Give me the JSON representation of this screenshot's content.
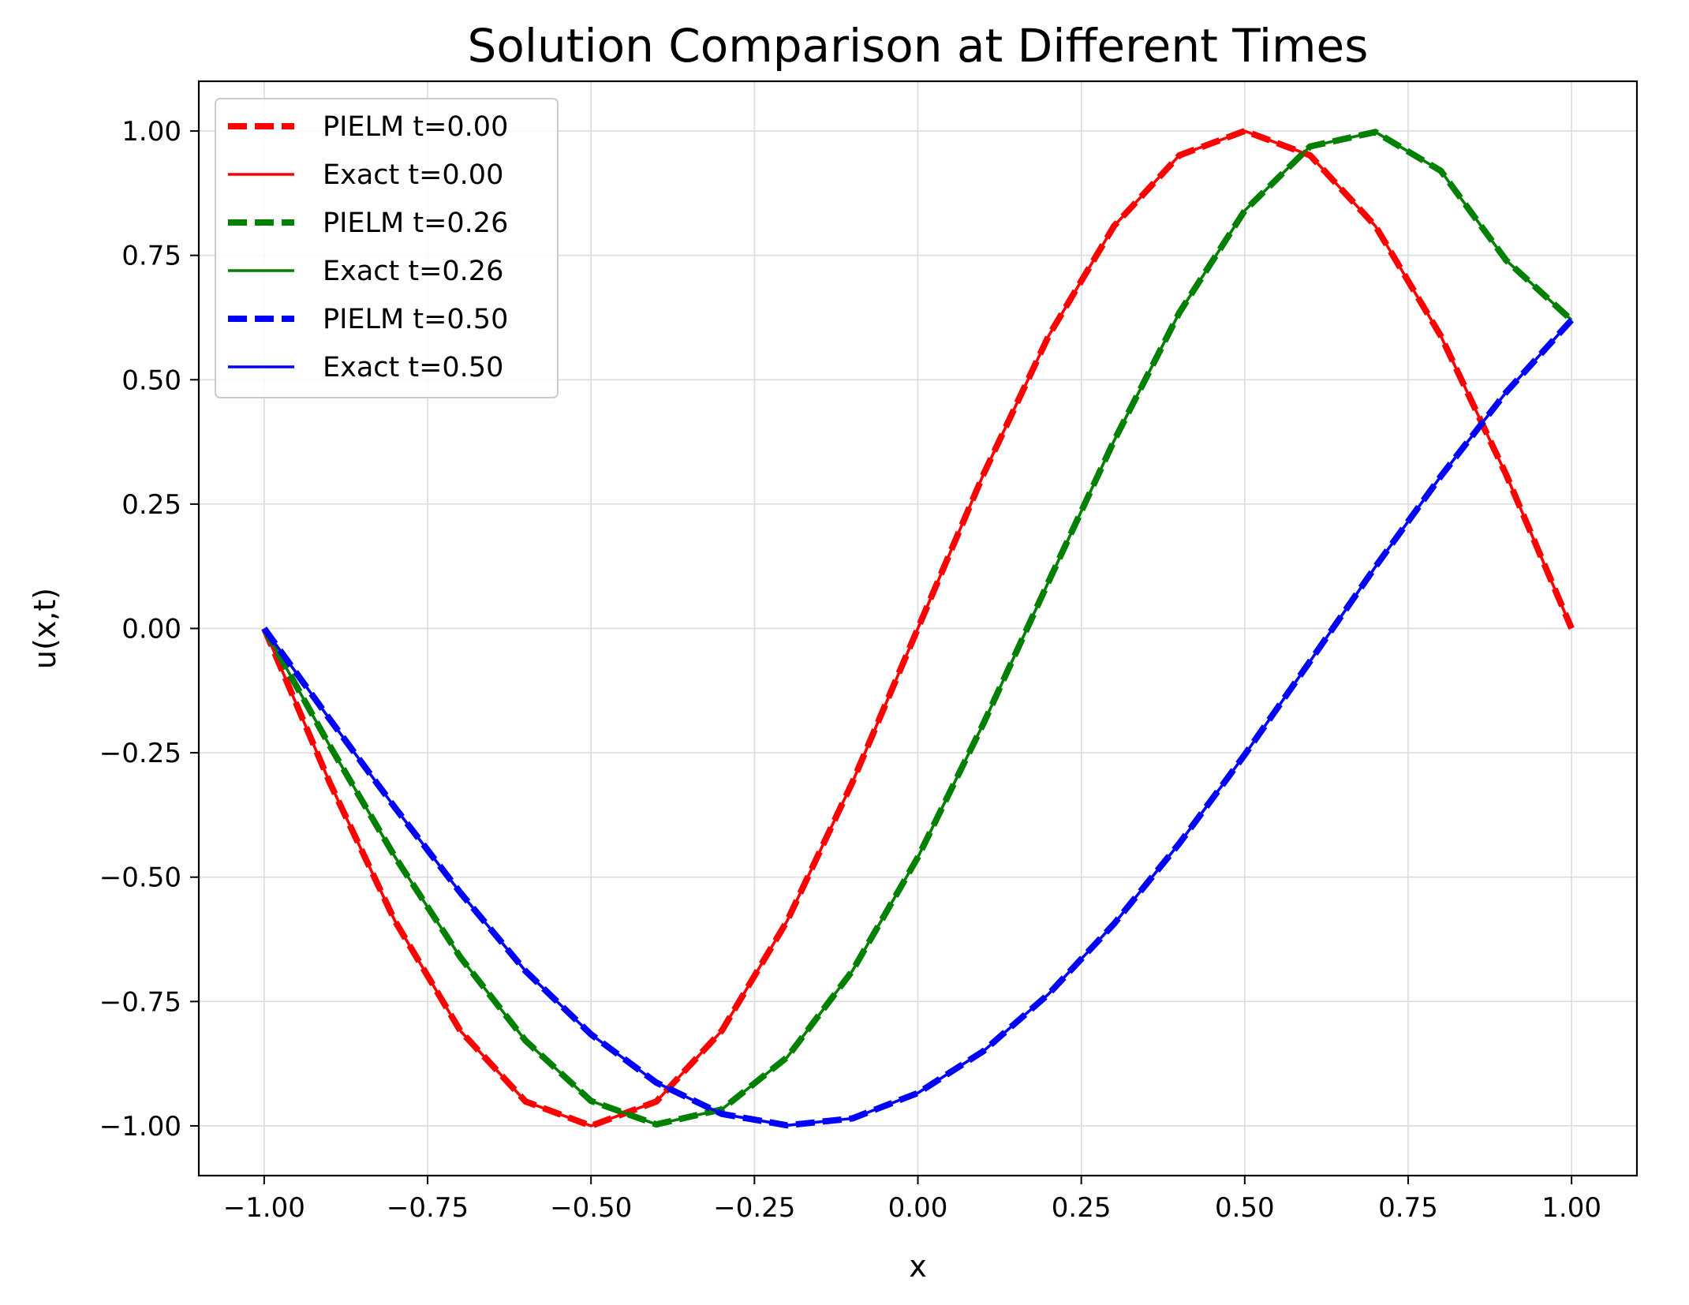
{
  "chart_data": {
    "type": "line",
    "title": "Solution Comparison at Different Times",
    "xlabel": "x",
    "ylabel": "u(x,t)",
    "xlim": [
      -1.1,
      1.1
    ],
    "ylim": [
      -1.1,
      1.1
    ],
    "grid": true,
    "legend_position": "top-left",
    "xticks": [
      -1.0,
      -0.75,
      -0.5,
      -0.25,
      0.0,
      0.25,
      0.5,
      0.75,
      1.0
    ],
    "xtick_labels": [
      "−1.00",
      "−0.75",
      "−0.50",
      "−0.25",
      "0.00",
      "0.25",
      "0.50",
      "0.75",
      "1.00"
    ],
    "yticks": [
      1.0,
      0.75,
      0.5,
      0.25,
      0.0,
      -0.25,
      -0.5,
      -0.75,
      -1.0
    ],
    "ytick_labels": [
      "1.00",
      "0.75",
      "0.50",
      "0.25",
      "0.00",
      "−0.25",
      "−0.50",
      "−0.75",
      "−1.00"
    ],
    "x": [
      -1.0,
      -0.9,
      -0.8,
      -0.7,
      -0.6,
      -0.5,
      -0.4,
      -0.3,
      -0.2,
      -0.1,
      0.0,
      0.1,
      0.2,
      0.3,
      0.4,
      0.5,
      0.6,
      0.7,
      0.8,
      0.9,
      1.0
    ],
    "series": [
      {
        "name": "PIELM t=0.00",
        "color": "#ff0000",
        "style": "dashed",
        "values": [
          0.0,
          -0.309,
          -0.588,
          -0.809,
          -0.951,
          -1.0,
          -0.951,
          -0.809,
          -0.588,
          -0.309,
          0.0,
          0.309,
          0.588,
          0.809,
          0.951,
          1.0,
          0.951,
          0.809,
          0.588,
          0.309,
          0.0
        ]
      },
      {
        "name": "Exact t=0.00",
        "color": "#ff0000",
        "style": "solid",
        "values": [
          0.0,
          -0.309,
          -0.588,
          -0.809,
          -0.951,
          -1.0,
          -0.951,
          -0.809,
          -0.588,
          -0.309,
          0.0,
          0.309,
          0.588,
          0.809,
          0.951,
          1.0,
          0.951,
          0.809,
          0.588,
          0.309,
          0.0
        ]
      },
      {
        "name": "PIELM t=0.26",
        "color": "#008000",
        "style": "dashed",
        "values": [
          0.0,
          -0.235,
          -0.459,
          -0.661,
          -0.829,
          -0.95,
          -0.997,
          -0.967,
          -0.862,
          -0.688,
          -0.46,
          -0.192,
          0.094,
          0.377,
          0.635,
          0.84,
          0.969,
          0.998,
          0.92,
          0.74,
          0.62
        ]
      },
      {
        "name": "Exact t=0.26",
        "color": "#008000",
        "style": "solid",
        "values": [
          0.0,
          -0.235,
          -0.459,
          -0.661,
          -0.829,
          -0.95,
          -0.997,
          -0.967,
          -0.862,
          -0.688,
          -0.46,
          -0.192,
          0.094,
          0.377,
          0.635,
          0.84,
          0.969,
          0.998,
          0.92,
          0.74,
          0.62
        ]
      },
      {
        "name": "PIELM t=0.50",
        "color": "#0000ff",
        "style": "dashed",
        "values": [
          0.0,
          -0.182,
          -0.36,
          -0.531,
          -0.689,
          -0.816,
          -0.913,
          -0.976,
          -0.999,
          -0.985,
          -0.934,
          -0.85,
          -0.735,
          -0.594,
          -0.432,
          -0.254,
          -0.066,
          0.124,
          0.306,
          0.475,
          0.62
        ]
      },
      {
        "name": "Exact t=0.50",
        "color": "#0000ff",
        "style": "solid",
        "values": [
          0.0,
          -0.182,
          -0.36,
          -0.531,
          -0.689,
          -0.816,
          -0.913,
          -0.976,
          -0.999,
          -0.985,
          -0.934,
          -0.85,
          -0.735,
          -0.594,
          -0.432,
          -0.254,
          -0.066,
          0.124,
          0.306,
          0.475,
          0.62
        ]
      }
    ]
  }
}
